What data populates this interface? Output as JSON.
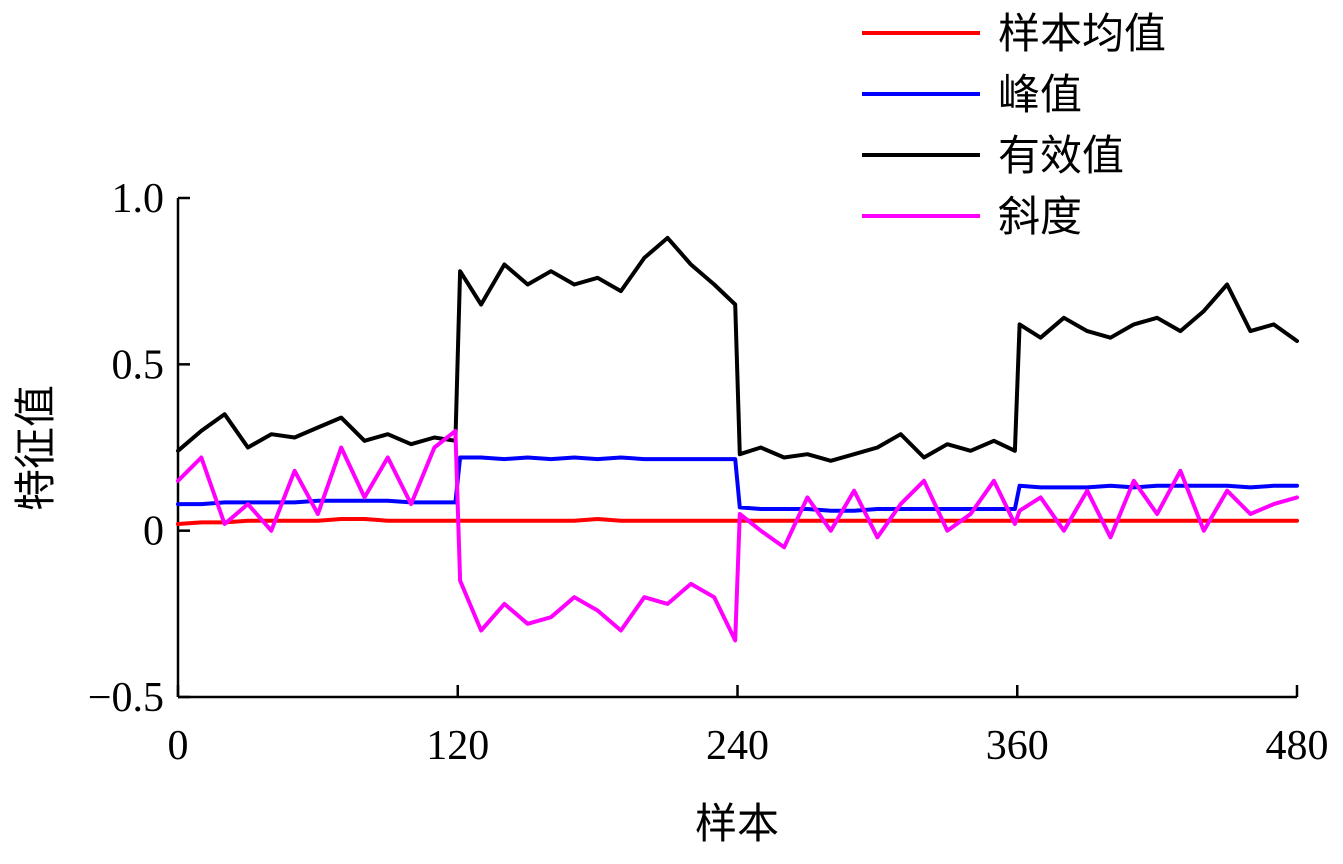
{
  "chart_data": {
    "type": "line",
    "xlabel": "样本",
    "ylabel": "特征值",
    "xlim": [
      0,
      480
    ],
    "ylim": [
      -0.5,
      1.0
    ],
    "xticks": [
      0,
      120,
      240,
      360,
      480
    ],
    "xtick_labels": [
      "0",
      "120",
      "240",
      "360",
      "480"
    ],
    "yticks": [
      -0.5,
      0,
      0.5,
      1.0
    ],
    "ytick_labels": [
      "−0.5",
      "0",
      "0.5",
      "1.0"
    ],
    "legend_position": "top-right",
    "grid": false,
    "x": [
      0,
      10,
      20,
      30,
      40,
      50,
      60,
      70,
      80,
      90,
      100,
      110,
      119,
      121,
      130,
      140,
      150,
      160,
      170,
      180,
      190,
      200,
      210,
      220,
      230,
      239,
      241,
      250,
      260,
      270,
      280,
      290,
      300,
      310,
      320,
      330,
      340,
      350,
      359,
      361,
      370,
      380,
      390,
      400,
      410,
      420,
      430,
      440,
      450,
      460,
      470,
      480
    ],
    "series": [
      {
        "name": "样本均值",
        "color": "#ff0000",
        "values": [
          0.02,
          0.025,
          0.025,
          0.03,
          0.03,
          0.03,
          0.03,
          0.035,
          0.035,
          0.03,
          0.03,
          0.03,
          0.03,
          0.03,
          0.03,
          0.03,
          0.03,
          0.03,
          0.03,
          0.035,
          0.03,
          0.03,
          0.03,
          0.03,
          0.03,
          0.03,
          0.03,
          0.03,
          0.03,
          0.03,
          0.03,
          0.03,
          0.03,
          0.03,
          0.03,
          0.03,
          0.03,
          0.03,
          0.03,
          0.03,
          0.03,
          0.03,
          0.03,
          0.03,
          0.03,
          0.03,
          0.03,
          0.03,
          0.03,
          0.03,
          0.03,
          0.03
        ]
      },
      {
        "name": "峰值",
        "color": "#0000ff",
        "values": [
          0.08,
          0.08,
          0.085,
          0.085,
          0.085,
          0.085,
          0.09,
          0.09,
          0.09,
          0.09,
          0.085,
          0.085,
          0.085,
          0.22,
          0.22,
          0.215,
          0.22,
          0.215,
          0.22,
          0.215,
          0.22,
          0.215,
          0.215,
          0.215,
          0.215,
          0.215,
          0.07,
          0.065,
          0.065,
          0.065,
          0.06,
          0.06,
          0.065,
          0.065,
          0.065,
          0.065,
          0.065,
          0.065,
          0.065,
          0.135,
          0.13,
          0.13,
          0.13,
          0.135,
          0.13,
          0.135,
          0.135,
          0.135,
          0.135,
          0.13,
          0.135,
          0.135
        ]
      },
      {
        "name": "有效值",
        "color": "#000000",
        "values": [
          0.24,
          0.3,
          0.35,
          0.25,
          0.29,
          0.28,
          0.31,
          0.34,
          0.27,
          0.29,
          0.26,
          0.28,
          0.27,
          0.78,
          0.68,
          0.8,
          0.74,
          0.78,
          0.74,
          0.76,
          0.72,
          0.82,
          0.88,
          0.8,
          0.74,
          0.68,
          0.23,
          0.25,
          0.22,
          0.23,
          0.21,
          0.23,
          0.25,
          0.29,
          0.22,
          0.26,
          0.24,
          0.27,
          0.24,
          0.62,
          0.58,
          0.64,
          0.6,
          0.58,
          0.62,
          0.64,
          0.6,
          0.66,
          0.74,
          0.6,
          0.62,
          0.57
        ]
      },
      {
        "name": "斜度",
        "color": "#ff00ff",
        "values": [
          0.15,
          0.22,
          0.02,
          0.08,
          0.0,
          0.18,
          0.05,
          0.25,
          0.1,
          0.22,
          0.08,
          0.25,
          0.3,
          -0.15,
          -0.3,
          -0.22,
          -0.28,
          -0.26,
          -0.2,
          -0.24,
          -0.3,
          -0.2,
          -0.22,
          -0.16,
          -0.2,
          -0.33,
          0.05,
          0.0,
          -0.05,
          0.1,
          0.0,
          0.12,
          -0.02,
          0.08,
          0.15,
          0.0,
          0.05,
          0.15,
          0.02,
          0.06,
          0.1,
          0.0,
          0.12,
          -0.02,
          0.15,
          0.05,
          0.18,
          0.0,
          0.12,
          0.05,
          0.08,
          0.1
        ]
      }
    ]
  }
}
